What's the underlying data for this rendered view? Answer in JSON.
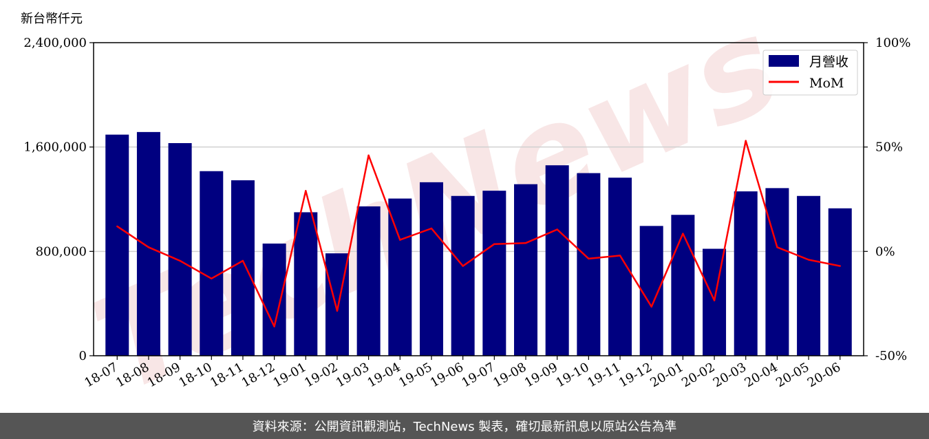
{
  "footer": {
    "text": "資料來源：公開資訊觀測站，TechNews 製表，確切最新訊息以原站公告為準"
  },
  "watermark": {
    "text": "TechNews",
    "color": "#f3d6d6"
  },
  "chart_data": {
    "type": "bar",
    "y_unit_label": "新台幣仟元",
    "categories": [
      "18-07",
      "18-08",
      "18-09",
      "18-10",
      "18-11",
      "18-12",
      "19-01",
      "19-02",
      "19-03",
      "19-04",
      "19-05",
      "19-06",
      "19-07",
      "19-08",
      "19-09",
      "19-10",
      "19-11",
      "19-12",
      "20-01",
      "20-02",
      "20-03",
      "20-04",
      "20-05",
      "20-06"
    ],
    "series": [
      {
        "name": "月營收",
        "type": "bar",
        "axis": "left",
        "color": "#000080",
        "values": [
          1695000,
          1715000,
          1630000,
          1415000,
          1345000,
          860000,
          1100000,
          785000,
          1145000,
          1205000,
          1330000,
          1225000,
          1265000,
          1315000,
          1460000,
          1400000,
          1365000,
          995000,
          1080000,
          820000,
          1260000,
          1285000,
          1225000,
          1130000
        ]
      },
      {
        "name": "MoM",
        "type": "line",
        "axis": "right",
        "color": "#ff0000",
        "values": [
          12,
          2,
          -4.5,
          -13,
          -4.5,
          -36,
          29,
          -28.5,
          46,
          5.5,
          11,
          -7,
          3.5,
          4,
          10.5,
          -3.5,
          -2,
          -26.5,
          8.5,
          -23.5,
          53,
          2,
          -4,
          -7
        ]
      }
    ],
    "ylim": [
      0,
      2400000
    ],
    "y_ticks": [
      "0",
      "800,000",
      "1,600,000",
      "2,400,000"
    ],
    "y_tick_values": [
      0,
      800000,
      1600000,
      2400000
    ],
    "y2lim": [
      -50,
      100
    ],
    "y2_ticks": [
      "-50%",
      "0%",
      "50%",
      "100%"
    ],
    "y2_tick_values": [
      -50,
      0,
      50,
      100
    ],
    "grid": "horizontal",
    "legend": "top-right"
  }
}
